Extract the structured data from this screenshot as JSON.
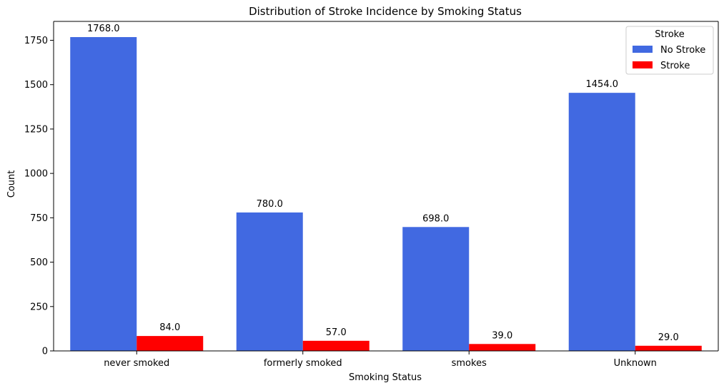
{
  "chart_data": {
    "type": "bar",
    "title": "Distribution of Stroke Incidence by Smoking Status",
    "xlabel": "Smoking Status",
    "ylabel": "Count",
    "categories": [
      "never smoked",
      "formerly smoked",
      "smokes",
      "Unknown"
    ],
    "series": [
      {
        "name": "No Stroke",
        "values": [
          1768,
          780,
          698,
          1454
        ],
        "color": "#4169e1"
      },
      {
        "name": "Stroke",
        "values": [
          84,
          57,
          39,
          29
        ],
        "color": "#ff0000"
      }
    ],
    "data_labels": [
      [
        "1768.0",
        "780.0",
        "698.0",
        "1454.0"
      ],
      [
        "84.0",
        "57.0",
        "39.0",
        "29.0"
      ]
    ],
    "ylim": [
      0,
      1856.4
    ],
    "yticks": [
      0,
      250,
      500,
      750,
      1000,
      1250,
      1500,
      1750
    ],
    "grid": false,
    "legend": {
      "title": "Stroke",
      "position": "top-right"
    }
  }
}
